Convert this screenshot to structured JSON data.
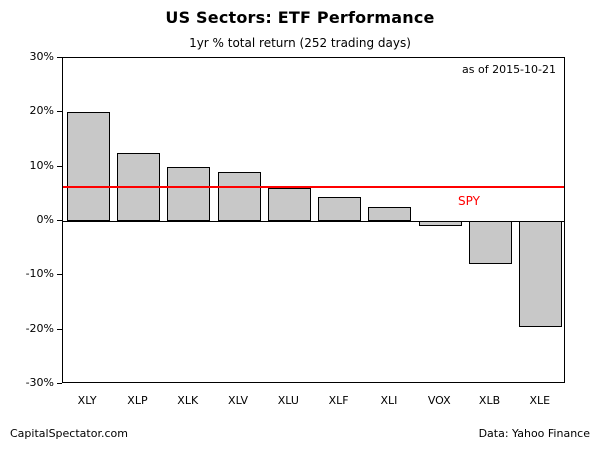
{
  "header": {
    "title": "US Sectors: ETF Performance",
    "subtitle": "1yr % total return (252 trading days)"
  },
  "annotations": {
    "as_of": "as of  2015-10-21",
    "spy_label": "SPY"
  },
  "footer": {
    "left": "CapitalSpectator.com",
    "right": "Data: Yahoo Finance"
  },
  "colors": {
    "bar_fill": "#c8c8c8",
    "bar_border": "#000000",
    "spy_line": "#ff0000",
    "frame": "#000000",
    "text": "#000000"
  },
  "chart_data": {
    "type": "bar",
    "title": "US Sectors: ETF Performance",
    "subtitle": "1yr % total return (252 trading days)",
    "categories": [
      "XLY",
      "XLP",
      "XLK",
      "XLV",
      "XLU",
      "XLF",
      "XLI",
      "VOX",
      "XLB",
      "XLE"
    ],
    "values": [
      20,
      12.5,
      10,
      9,
      6,
      4.5,
      2.5,
      -1,
      -8,
      -19.5
    ],
    "xlabel": "",
    "ylabel": "1yr % total return",
    "ylim": [
      -30,
      30
    ],
    "ytick_step": 10,
    "ytick_labels": [
      "30%",
      "20%",
      "10%",
      "0%",
      "-10%",
      "-20%",
      "-30%"
    ],
    "grid": false,
    "legend": "none",
    "reference_line": {
      "label": "SPY",
      "value": 6.2,
      "color": "#ff0000"
    },
    "as_of_date": "2015-10-21"
  }
}
